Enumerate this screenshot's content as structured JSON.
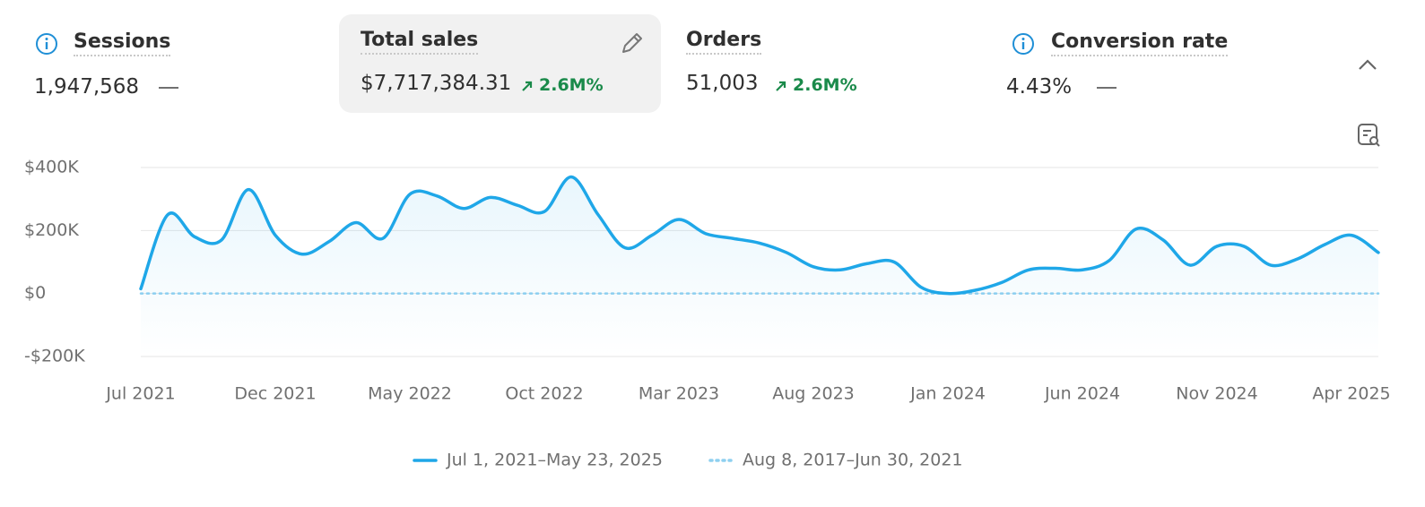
{
  "metrics": [
    {
      "title": "Sessions",
      "value": "1,947,568"
    },
    {
      "title": "Total sales",
      "value": "$7,717,384.31",
      "change": "2.6M%"
    },
    {
      "title": "Orders",
      "value": "51,003",
      "change": "2.6M%"
    },
    {
      "title": "Conversion rate",
      "value": "4.43%"
    }
  ],
  "chart_data": {
    "type": "line",
    "categories": [
      "Jul 2021",
      null,
      null,
      null,
      null,
      "Dec 2021",
      null,
      null,
      null,
      null,
      "May 2022",
      null,
      null,
      null,
      null,
      "Oct 2022",
      null,
      null,
      null,
      null,
      "Mar 2023",
      null,
      null,
      null,
      null,
      "Aug 2023",
      null,
      null,
      null,
      null,
      "Jan 2024",
      null,
      null,
      null,
      null,
      "Jun 2024",
      null,
      null,
      null,
      null,
      "Nov 2024",
      null,
      null,
      null,
      null,
      "Apr 2025",
      null
    ],
    "series": [
      {
        "name": "Jul 1, 2021–May 23, 2025",
        "color": "#1fa7e8",
        "values": [
          15000,
          250000,
          180000,
          170000,
          330000,
          185000,
          125000,
          165000,
          225000,
          175000,
          315000,
          310000,
          270000,
          305000,
          280000,
          260000,
          370000,
          250000,
          145000,
          185000,
          235000,
          190000,
          175000,
          160000,
          130000,
          85000,
          75000,
          95000,
          100000,
          20000,
          0,
          10000,
          35000,
          75000,
          80000,
          75000,
          105000,
          205000,
          170000,
          90000,
          150000,
          150000,
          90000,
          110000,
          155000,
          185000,
          130000
        ]
      },
      {
        "name": "Aug 8, 2017–Jun 30, 2021",
        "color": "#8fd0f0",
        "values": [
          0,
          0,
          0,
          0,
          0,
          0,
          0,
          0,
          0,
          0,
          0,
          0,
          0,
          0,
          0,
          0,
          0,
          0,
          0,
          0,
          0,
          0,
          0,
          0,
          0,
          0,
          0,
          0,
          0,
          0,
          0,
          0,
          0,
          0,
          0,
          0,
          0,
          0,
          0,
          0,
          0,
          0,
          0,
          0,
          0,
          0,
          0
        ]
      }
    ],
    "ylim": [
      -200000,
      400000
    ],
    "yticks": [
      {
        "value": -200000,
        "label": "-$200K"
      },
      {
        "value": 0,
        "label": "$0"
      },
      {
        "value": 200000,
        "label": "$200K"
      },
      {
        "value": 400000,
        "label": "$400K"
      }
    ],
    "grid": true
  }
}
